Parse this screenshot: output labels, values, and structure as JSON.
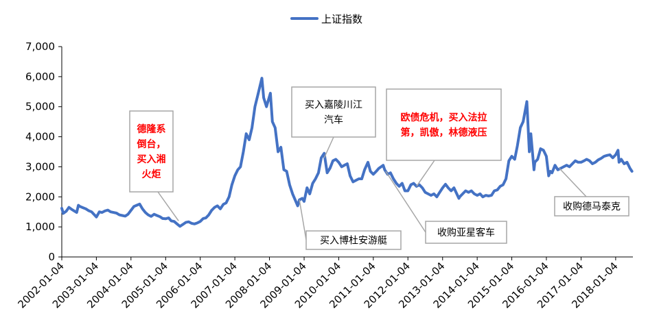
{
  "chart_data": {
    "type": "line",
    "series": [
      {
        "name": "上证指数",
        "color": "#4472C4",
        "points": [
          [
            "2002-01-04",
            1620
          ],
          [
            "2002-01-20",
            1450
          ],
          [
            "2002-02-20",
            1520
          ],
          [
            "2002-03-20",
            1650
          ],
          [
            "2002-04-20",
            1580
          ],
          [
            "2002-05-20",
            1520
          ],
          [
            "2002-06-10",
            1480
          ],
          [
            "2002-06-28",
            1720
          ],
          [
            "2002-07-15",
            1680
          ],
          [
            "2002-08-15",
            1640
          ],
          [
            "2002-09-15",
            1600
          ],
          [
            "2002-10-15",
            1540
          ],
          [
            "2002-11-15",
            1500
          ],
          [
            "2002-12-15",
            1400
          ],
          [
            "2003-01-04",
            1330
          ],
          [
            "2003-02-04",
            1500
          ],
          [
            "2003-03-04",
            1480
          ],
          [
            "2003-04-04",
            1530
          ],
          [
            "2003-05-04",
            1560
          ],
          [
            "2003-06-04",
            1500
          ],
          [
            "2003-07-04",
            1480
          ],
          [
            "2003-08-04",
            1460
          ],
          [
            "2003-09-04",
            1400
          ],
          [
            "2003-10-04",
            1380
          ],
          [
            "2003-11-04",
            1360
          ],
          [
            "2003-12-04",
            1420
          ],
          [
            "2004-01-04",
            1550
          ],
          [
            "2004-02-04",
            1680
          ],
          [
            "2004-03-04",
            1720
          ],
          [
            "2004-04-04",
            1760
          ],
          [
            "2004-05-04",
            1600
          ],
          [
            "2004-06-04",
            1480
          ],
          [
            "2004-07-04",
            1400
          ],
          [
            "2004-08-04",
            1350
          ],
          [
            "2004-09-04",
            1420
          ],
          [
            "2004-10-04",
            1380
          ],
          [
            "2004-11-04",
            1340
          ],
          [
            "2004-12-04",
            1280
          ],
          [
            "2005-01-04",
            1270
          ],
          [
            "2005-02-04",
            1300
          ],
          [
            "2005-03-04",
            1200
          ],
          [
            "2005-04-04",
            1180
          ],
          [
            "2005-05-04",
            1100
          ],
          [
            "2005-06-04",
            1020
          ],
          [
            "2005-07-04",
            1080
          ],
          [
            "2005-08-04",
            1150
          ],
          [
            "2005-09-04",
            1170
          ],
          [
            "2005-10-04",
            1120
          ],
          [
            "2005-11-04",
            1100
          ],
          [
            "2005-12-04",
            1130
          ],
          [
            "2006-01-04",
            1180
          ],
          [
            "2006-02-04",
            1280
          ],
          [
            "2006-03-04",
            1300
          ],
          [
            "2006-04-04",
            1400
          ],
          [
            "2006-05-04",
            1550
          ],
          [
            "2006-06-04",
            1650
          ],
          [
            "2006-07-04",
            1700
          ],
          [
            "2006-08-04",
            1600
          ],
          [
            "2006-09-04",
            1750
          ],
          [
            "2006-10-04",
            1800
          ],
          [
            "2006-11-04",
            2000
          ],
          [
            "2006-12-04",
            2400
          ],
          [
            "2007-01-04",
            2700
          ],
          [
            "2007-02-04",
            2900
          ],
          [
            "2007-03-04",
            3000
          ],
          [
            "2007-04-04",
            3500
          ],
          [
            "2007-05-04",
            4100
          ],
          [
            "2007-06-04",
            3900
          ],
          [
            "2007-07-04",
            4300
          ],
          [
            "2007-08-04",
            5000
          ],
          [
            "2007-09-04",
            5400
          ],
          [
            "2007-10-16",
            5950
          ],
          [
            "2007-11-04",
            5300
          ],
          [
            "2007-12-04",
            5000
          ],
          [
            "2008-01-14",
            5450
          ],
          [
            "2008-02-04",
            4500
          ],
          [
            "2008-03-04",
            4300
          ],
          [
            "2008-04-04",
            3500
          ],
          [
            "2008-05-04",
            3650
          ],
          [
            "2008-06-04",
            2900
          ],
          [
            "2008-07-04",
            2850
          ],
          [
            "2008-08-04",
            2400
          ],
          [
            "2008-09-04",
            2100
          ],
          [
            "2008-10-28",
            1700
          ],
          [
            "2008-11-15",
            1900
          ],
          [
            "2008-12-15",
            1950
          ],
          [
            "2009-01-04",
            1850
          ],
          [
            "2009-02-04",
            2300
          ],
          [
            "2009-03-04",
            2100
          ],
          [
            "2009-04-04",
            2450
          ],
          [
            "2009-05-04",
            2600
          ],
          [
            "2009-06-04",
            2800
          ],
          [
            "2009-07-04",
            3300
          ],
          [
            "2009-08-04",
            3450
          ],
          [
            "2009-09-04",
            2800
          ],
          [
            "2009-10-04",
            2950
          ],
          [
            "2009-11-04",
            3200
          ],
          [
            "2009-12-04",
            3250
          ],
          [
            "2010-01-04",
            3150
          ],
          [
            "2010-02-04",
            3000
          ],
          [
            "2010-03-04",
            3050
          ],
          [
            "2010-04-04",
            3100
          ],
          [
            "2010-05-04",
            2700
          ],
          [
            "2010-06-04",
            2500
          ],
          [
            "2010-07-04",
            2550
          ],
          [
            "2010-08-04",
            2600
          ],
          [
            "2010-09-04",
            2600
          ],
          [
            "2010-10-04",
            2900
          ],
          [
            "2010-11-08",
            3150
          ],
          [
            "2010-12-04",
            2850
          ],
          [
            "2011-01-04",
            2750
          ],
          [
            "2011-02-04",
            2850
          ],
          [
            "2011-03-04",
            2950
          ],
          [
            "2011-04-18",
            3050
          ],
          [
            "2011-05-04",
            2900
          ],
          [
            "2011-06-04",
            2750
          ],
          [
            "2011-07-04",
            2800
          ],
          [
            "2011-08-04",
            2600
          ],
          [
            "2011-09-04",
            2450
          ],
          [
            "2011-10-04",
            2350
          ],
          [
            "2011-11-04",
            2450
          ],
          [
            "2011-12-04",
            2200
          ],
          [
            "2012-01-04",
            2200
          ],
          [
            "2012-02-04",
            2400
          ],
          [
            "2012-03-04",
            2450
          ],
          [
            "2012-04-04",
            2350
          ],
          [
            "2012-05-04",
            2400
          ],
          [
            "2012-06-04",
            2300
          ],
          [
            "2012-07-04",
            2150
          ],
          [
            "2012-08-04",
            2100
          ],
          [
            "2012-09-04",
            2050
          ],
          [
            "2012-10-04",
            2100
          ],
          [
            "2012-11-04",
            2000
          ],
          [
            "2012-12-04",
            2150
          ],
          [
            "2013-01-04",
            2300
          ],
          [
            "2013-02-04",
            2420
          ],
          [
            "2013-03-04",
            2300
          ],
          [
            "2013-04-04",
            2200
          ],
          [
            "2013-05-04",
            2300
          ],
          [
            "2013-06-25",
            1950
          ],
          [
            "2013-07-04",
            2000
          ],
          [
            "2013-08-04",
            2100
          ],
          [
            "2013-09-04",
            2200
          ],
          [
            "2013-10-04",
            2150
          ],
          [
            "2013-11-04",
            2200
          ],
          [
            "2013-12-04",
            2100
          ],
          [
            "2014-01-04",
            2050
          ],
          [
            "2014-02-04",
            2100
          ],
          [
            "2014-03-04",
            2000
          ],
          [
            "2014-04-04",
            2050
          ],
          [
            "2014-05-04",
            2030
          ],
          [
            "2014-06-04",
            2050
          ],
          [
            "2014-07-04",
            2200
          ],
          [
            "2014-08-04",
            2230
          ],
          [
            "2014-09-04",
            2350
          ],
          [
            "2014-10-04",
            2400
          ],
          [
            "2014-11-04",
            2600
          ],
          [
            "2014-12-04",
            3200
          ],
          [
            "2015-01-04",
            3350
          ],
          [
            "2015-02-04",
            3250
          ],
          [
            "2015-03-04",
            3700
          ],
          [
            "2015-04-04",
            4300
          ],
          [
            "2015-05-04",
            4500
          ],
          [
            "2015-06-12",
            5170
          ],
          [
            "2015-07-08",
            3500
          ],
          [
            "2015-07-24",
            4100
          ],
          [
            "2015-08-26",
            2900
          ],
          [
            "2015-09-04",
            3150
          ],
          [
            "2015-10-04",
            3250
          ],
          [
            "2015-11-04",
            3600
          ],
          [
            "2015-12-04",
            3550
          ],
          [
            "2016-01-04",
            3350
          ],
          [
            "2016-01-28",
            2700
          ],
          [
            "2016-02-15",
            2850
          ],
          [
            "2016-03-04",
            2800
          ],
          [
            "2016-04-04",
            3050
          ],
          [
            "2016-05-04",
            2900
          ],
          [
            "2016-06-04",
            2950
          ],
          [
            "2016-07-04",
            3000
          ],
          [
            "2016-08-04",
            3050
          ],
          [
            "2016-09-04",
            3000
          ],
          [
            "2016-10-04",
            3100
          ],
          [
            "2016-11-04",
            3200
          ],
          [
            "2016-12-04",
            3150
          ],
          [
            "2017-01-04",
            3150
          ],
          [
            "2017-02-04",
            3200
          ],
          [
            "2017-03-04",
            3250
          ],
          [
            "2017-04-04",
            3200
          ],
          [
            "2017-05-04",
            3100
          ],
          [
            "2017-06-04",
            3150
          ],
          [
            "2017-07-04",
            3230
          ],
          [
            "2017-08-04",
            3280
          ],
          [
            "2017-09-04",
            3350
          ],
          [
            "2017-10-04",
            3380
          ],
          [
            "2017-11-04",
            3400
          ],
          [
            "2017-12-04",
            3300
          ],
          [
            "2018-01-04",
            3400
          ],
          [
            "2018-01-29",
            3550
          ],
          [
            "2018-02-09",
            3150
          ],
          [
            "2018-03-04",
            3250
          ],
          [
            "2018-04-04",
            3100
          ],
          [
            "2018-05-04",
            3150
          ],
          [
            "2018-06-04",
            2950
          ],
          [
            "2018-06-25",
            2850
          ]
        ]
      }
    ],
    "x_tick_labels": [
      "2002-01-04",
      "2003-01-04",
      "2004-01-04",
      "2005-01-04",
      "2006-01-04",
      "2007-01-04",
      "2008-01-04",
      "2009-01-04",
      "2010-01-04",
      "2011-01-04",
      "2012-01-04",
      "2013-01-04",
      "2014-01-04",
      "2015-01-04",
      "2016-01-04",
      "2017-01-04",
      "2018-01-04"
    ],
    "x_range": [
      "2002-01-04",
      "2018-07-05"
    ],
    "y_ticks": [
      "0",
      "1,000",
      "2,000",
      "3,000",
      "4,000",
      "5,000",
      "6,000",
      "7,000"
    ],
    "ylim": [
      0,
      7000
    ],
    "legend_position": "top-center",
    "annotations": [
      {
        "lines": [
          "德隆系",
          "倒台，",
          "买入湘",
          "火炬"
        ],
        "color": "#FF0000",
        "bold": true,
        "target_date": "2005-05-20",
        "target_value": 1200
      },
      {
        "lines": [
          "买入嘉陵川江",
          "汽车"
        ],
        "color": "#000000",
        "bold": false,
        "target_date": "2009-08-04",
        "target_value": 3300
      },
      {
        "lines": [
          "欧债危机，买入法拉",
          "第，凯傲，林德液压"
        ],
        "color": "#FF0000",
        "bold": true,
        "target_date": "2012-04-04",
        "target_value": 2350
      },
      {
        "lines": [
          "买入博杜安游艇"
        ],
        "color": "#000000",
        "bold": false,
        "target_date": "2008-11-15",
        "target_value": 1900
      },
      {
        "lines": [
          "收购亚星客车"
        ],
        "color": "#000000",
        "bold": false,
        "target_date": "2011-05-15",
        "target_value": 2850
      },
      {
        "lines": [
          "收购德马泰克"
        ],
        "color": "#000000",
        "bold": false,
        "target_date": "2016-05-20",
        "target_value": 2950
      }
    ]
  }
}
